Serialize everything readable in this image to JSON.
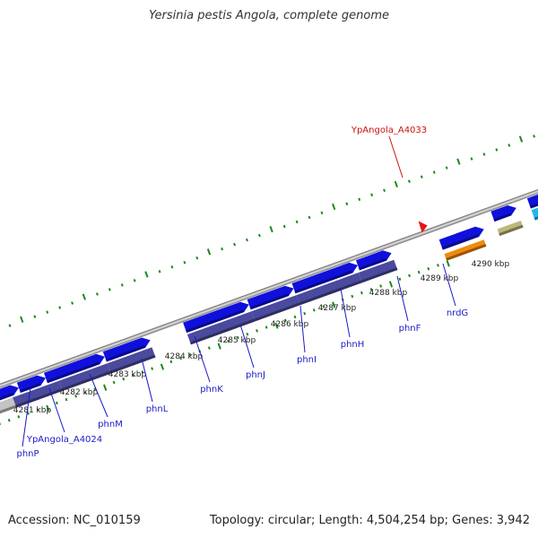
{
  "title": "Yersinia pestis Angola, complete genome",
  "footer": {
    "accession": "Accession: NC_010159",
    "summary": "Topology: circular; Length: 4,504,254 bp; Genes: 3,942"
  },
  "colors": {
    "gene_forward": "#1010dd",
    "gene_reverse": "#4a4a9e",
    "gene_orange": "#f08a10",
    "gene_khaki": "#bdb87a",
    "gene_cyan": "#1eb8f0",
    "gene_grey": "#c4c4c4",
    "tick": "#1a8a1a",
    "backbone": "#8c8c8c",
    "gene_label": "#1a1ac8",
    "highlight_label": "#cc1111",
    "highlight_marker": "#ee1111"
  },
  "kbp_labels": [
    "4281 kbp",
    "4282 kbp",
    "4283 kbp",
    "4284 kbp",
    "4285 kbp",
    "4286 kbp",
    "4287 kbp",
    "4288 kbp",
    "4289 kbp",
    "4290 kbp"
  ],
  "genes": [
    {
      "name": "phnP",
      "strand": "reverse"
    },
    {
      "name": "YpAngola_A4024",
      "strand": "reverse"
    },
    {
      "name": "phnM",
      "strand": "reverse"
    },
    {
      "name": "phnL",
      "strand": "reverse"
    },
    {
      "name": "phnK",
      "strand": "forward"
    },
    {
      "name": "phnJ",
      "strand": "reverse"
    },
    {
      "name": "phnI",
      "strand": "reverse"
    },
    {
      "name": "phnH",
      "strand": "reverse"
    },
    {
      "name": "phnF",
      "strand": "forward"
    },
    {
      "name": "nrdG",
      "strand": "forward"
    }
  ],
  "highlight_gene": "YpAngola_A4033"
}
